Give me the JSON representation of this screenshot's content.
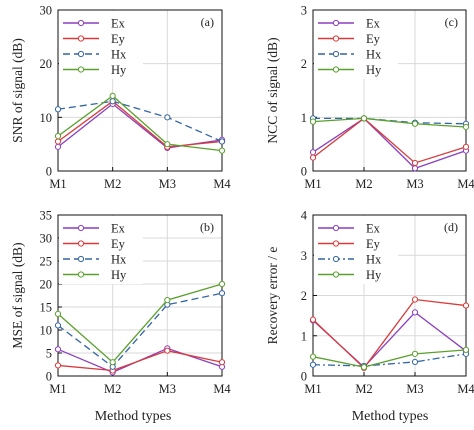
{
  "figure": {
    "xlabel_left": "Method types",
    "xlabel_right": "Method types"
  },
  "chart_data": [
    {
      "type": "line",
      "panel_label": "(a)",
      "ylabel": "SNR of signal (dB)",
      "categories": [
        "M1",
        "M2",
        "M3",
        "M4"
      ],
      "ylim": [
        0,
        30
      ],
      "yticks": [
        0,
        10,
        20,
        30
      ],
      "grid": true,
      "legend": "top-left",
      "series": [
        {
          "name": "Ex",
          "color": "#8b3fbf",
          "dash": "solid",
          "marker": "circle",
          "values": [
            4.5,
            12.5,
            4.3,
            5.8
          ]
        },
        {
          "name": "Ey",
          "color": "#d93a3a",
          "dash": "solid",
          "marker": "circle",
          "values": [
            5.5,
            13.0,
            4.5,
            5.5
          ]
        },
        {
          "name": "Hx",
          "color": "#3465a4",
          "dash": "dashed",
          "marker": "circle",
          "values": [
            11.5,
            13.0,
            10.0,
            5.5
          ]
        },
        {
          "name": "Hy",
          "color": "#5aa02c",
          "dash": "solid",
          "marker": "circle",
          "values": [
            6.5,
            14.0,
            5.0,
            3.8
          ]
        }
      ]
    },
    {
      "type": "line",
      "panel_label": "(c)",
      "ylabel": "NCC of signal (dB)",
      "categories": [
        "M1",
        "M2",
        "M3",
        "M4"
      ],
      "ylim": [
        0,
        3
      ],
      "yticks": [
        0,
        1,
        2,
        3
      ],
      "grid": true,
      "legend": "top-left",
      "series": [
        {
          "name": "Ex",
          "color": "#8b3fbf",
          "dash": "solid",
          "marker": "circle",
          "values": [
            0.35,
            0.98,
            0.05,
            0.38
          ]
        },
        {
          "name": "Ey",
          "color": "#d93a3a",
          "dash": "solid",
          "marker": "circle",
          "values": [
            0.25,
            0.98,
            0.15,
            0.45
          ]
        },
        {
          "name": "Hx",
          "color": "#3465a4",
          "dash": "dashed",
          "marker": "circle",
          "values": [
            0.98,
            0.98,
            0.9,
            0.88
          ]
        },
        {
          "name": "Hy",
          "color": "#5aa02c",
          "dash": "solid",
          "marker": "circle",
          "values": [
            0.92,
            0.98,
            0.88,
            0.82
          ]
        }
      ]
    },
    {
      "type": "line",
      "panel_label": "(b)",
      "ylabel": "MSE of signal (dB)",
      "categories": [
        "M1",
        "M2",
        "M3",
        "M4"
      ],
      "ylim": [
        0,
        35
      ],
      "yticks": [
        0,
        5,
        10,
        15,
        20,
        25,
        30,
        35
      ],
      "grid": true,
      "legend": "top-left",
      "series": [
        {
          "name": "Ex",
          "color": "#8b3fbf",
          "dash": "solid",
          "marker": "circle",
          "values": [
            5.8,
            0.8,
            6.0,
            2.0
          ]
        },
        {
          "name": "Ey",
          "color": "#d93a3a",
          "dash": "solid",
          "marker": "circle",
          "values": [
            2.3,
            1.2,
            5.5,
            3.0
          ]
        },
        {
          "name": "Hx",
          "color": "#3465a4",
          "dash": "dashed",
          "marker": "circle",
          "values": [
            11.0,
            2.0,
            15.5,
            18.0
          ]
        },
        {
          "name": "Hy",
          "color": "#5aa02c",
          "dash": "solid",
          "marker": "circle",
          "values": [
            13.5,
            3.0,
            16.5,
            20.0
          ]
        }
      ]
    },
    {
      "type": "line",
      "panel_label": "(d)",
      "ylabel": "Recovery error / e",
      "categories": [
        "M1",
        "M2",
        "M3",
        "M4"
      ],
      "ylim": [
        0,
        4
      ],
      "yticks": [
        0,
        1,
        2,
        3,
        4
      ],
      "grid": true,
      "legend": "top-left",
      "series": [
        {
          "name": "Ex",
          "color": "#8b3fbf",
          "dash": "solid",
          "marker": "circle",
          "values": [
            1.38,
            0.22,
            1.58,
            0.62
          ]
        },
        {
          "name": "Ey",
          "color": "#d93a3a",
          "dash": "solid",
          "marker": "circle",
          "values": [
            1.4,
            0.2,
            1.9,
            1.75
          ]
        },
        {
          "name": "Hx",
          "color": "#3465a4",
          "dash": "dashdot",
          "marker": "circle",
          "values": [
            0.28,
            0.25,
            0.35,
            0.55
          ]
        },
        {
          "name": "Hy",
          "color": "#5aa02c",
          "dash": "solid",
          "marker": "circle",
          "values": [
            0.48,
            0.22,
            0.55,
            0.65
          ]
        }
      ]
    }
  ]
}
